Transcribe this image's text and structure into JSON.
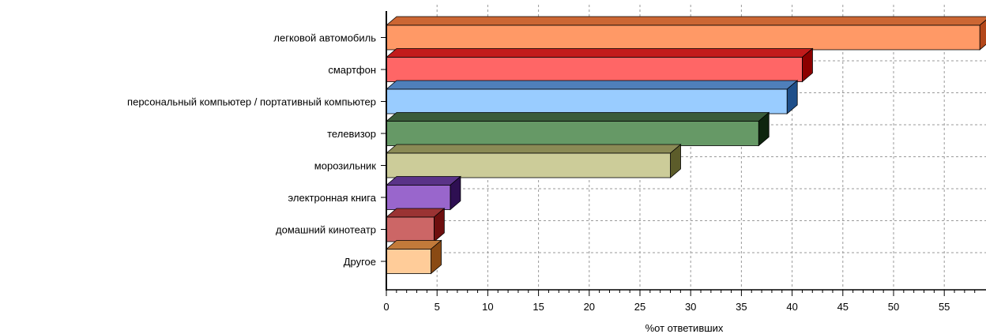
{
  "chart_data": {
    "type": "bar",
    "orientation": "horizontal",
    "style": "3d",
    "xlabel": "%от ответивших",
    "xlim": [
      0,
      58.5
    ],
    "xticks": [
      0,
      5,
      10,
      15,
      20,
      25,
      30,
      35,
      40,
      45,
      50,
      55
    ],
    "grid": true,
    "categories": [
      "легковой автомобиль",
      "смартфон",
      "персональный компьютер / портативный компьютер",
      "телевизор",
      "морозильник",
      "электронная книга",
      "домашний кинотеатр",
      "Другое"
    ],
    "values": [
      58.5,
      41.0,
      39.5,
      36.7,
      28.0,
      6.3,
      4.7,
      4.4
    ],
    "colors": [
      {
        "front": "#ff9966",
        "side": "#b3471a",
        "top": "#cc6633"
      },
      {
        "front": "#ff6666",
        "side": "#8c0000",
        "top": "#c21b1b"
      },
      {
        "front": "#99ccff",
        "side": "#1f4f8a",
        "top": "#4f7fba"
      },
      {
        "front": "#669966",
        "side": "#0f260f",
        "top": "#3a5c3a"
      },
      {
        "front": "#cccc99",
        "side": "#5c5c2a",
        "top": "#8a8a55"
      },
      {
        "front": "#9966cc",
        "side": "#2e0f52",
        "top": "#5a3388"
      },
      {
        "front": "#cc6666",
        "side": "#6e0f0f",
        "top": "#9a3333"
      },
      {
        "front": "#ffcc99",
        "side": "#8a4a14",
        "top": "#c27a3a"
      }
    ]
  }
}
